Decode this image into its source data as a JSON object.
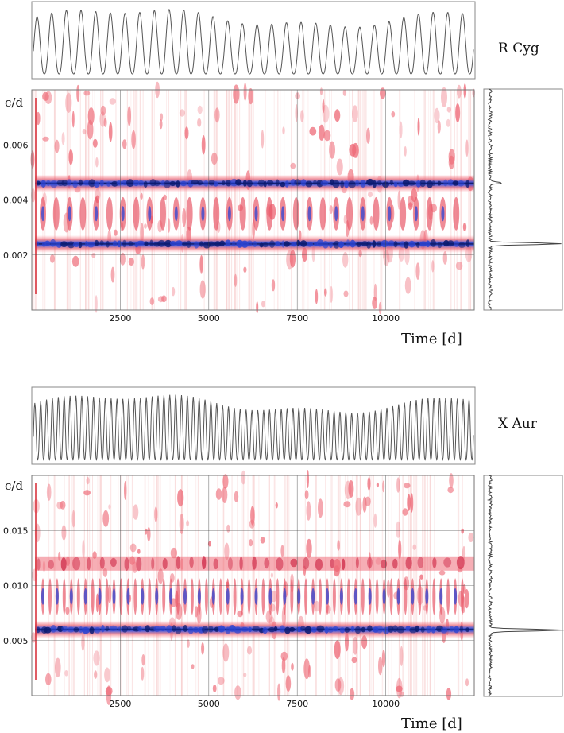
{
  "chart_data": [
    {
      "type": "line",
      "name": "R Cyg",
      "series": [
        {
          "values_description": "periodic light curve",
          "cycles": 30
        }
      ],
      "xlim": [
        0,
        12500
      ]
    },
    {
      "type": "heatmap",
      "name": "R Cyg",
      "ylabel": "c/d",
      "xlabel": "Time [d]",
      "x_ticks": [
        "2500",
        "5000",
        "7500",
        "10000"
      ],
      "x_tick_values": [
        2500,
        5000,
        7500,
        10000
      ],
      "y_ticks": [
        "0.006",
        "0.004",
        "0.002"
      ],
      "y_tick_values": [
        0.006,
        0.004,
        0.002
      ],
      "xlim": [
        0,
        12500
      ],
      "ylim": [
        0,
        0.008
      ],
      "ridges": [
        {
          "freq": 0.0046,
          "strength": "strong"
        },
        {
          "freq": 0.0024,
          "strength": "strong"
        }
      ],
      "spectrum_peaks": [
        {
          "freq": 0.0024,
          "amp": 1.0
        },
        {
          "freq": 0.0046,
          "amp": 0.15
        }
      ]
    },
    {
      "type": "line",
      "name": "X Aur",
      "series": [
        {
          "values_description": "periodic light curve",
          "cycles": 75
        }
      ],
      "xlim": [
        0,
        12500
      ]
    },
    {
      "type": "heatmap",
      "name": "X Aur",
      "ylabel": "c/d",
      "xlabel": "Time [d]",
      "x_ticks": [
        "2500",
        "5000",
        "7500",
        "10000"
      ],
      "x_tick_values": [
        2500,
        5000,
        7500,
        10000
      ],
      "y_ticks": [
        "0.015",
        "0.010",
        "0.005"
      ],
      "y_tick_values": [
        0.015,
        0.01,
        0.005
      ],
      "xlim": [
        0,
        12500
      ],
      "ylim": [
        0,
        0.02
      ],
      "ridges": [
        {
          "freq": 0.006,
          "strength": "strong"
        },
        {
          "freq": 0.012,
          "strength": "weak"
        }
      ],
      "spectrum_peaks": [
        {
          "freq": 0.006,
          "amp": 1.0
        }
      ]
    }
  ]
}
